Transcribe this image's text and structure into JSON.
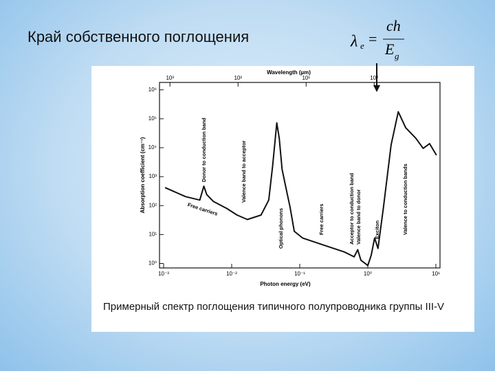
{
  "slide": {
    "title": "Край собственного поглощения",
    "formula": {
      "lhs": "λ",
      "lhs_sub": "e",
      "eq": "=",
      "numerator": "ch",
      "denominator": "E",
      "denominator_sub": "g"
    },
    "caption": "Примерный спектр поглощения типичного полупроводника группы III-V"
  },
  "chart_data": {
    "type": "line",
    "log_x": true,
    "log_y": true,
    "color": "#111111",
    "x_label": "Photon energy (eV)",
    "x2_label": "Wavelength (µm)",
    "y_label": "Absorption coefficient (cm⁻¹)",
    "x": [
      0.00105,
      0.0021,
      0.0034,
      0.0039,
      0.0043,
      0.0054,
      0.0085,
      0.012,
      0.017,
      0.027,
      0.035,
      0.04,
      0.046,
      0.05,
      0.055,
      0.062,
      0.072,
      0.083,
      0.11,
      0.22,
      0.45,
      0.63,
      0.71,
      0.79,
      1.0,
      1.12,
      1.26,
      1.41,
      1.7,
      2.2,
      2.8,
      3.6,
      5.1,
      6.5,
      8.1,
      10.2
    ],
    "values": [
      417,
      204,
      155,
      468,
      240,
      138,
      79,
      47,
      33,
      47,
      155,
      2400,
      72000,
      21000,
      1800,
      470,
      89,
      13,
      7.6,
      4.4,
      2.5,
      1.7,
      3.0,
      1.3,
      0.85,
      1.9,
      7.6,
      3.3,
      89,
      12600,
      174000,
      49000,
      21000,
      9500,
      13800,
      5500
    ],
    "xlim": [
      0.00087,
      11.5
    ],
    "xticks": [
      {
        "value": 0.001,
        "label": "10⁻³"
      },
      {
        "value": 0.01,
        "label": "10⁻²"
      },
      {
        "value": 0.1,
        "label": "10⁻¹"
      },
      {
        "value": 1,
        "label": "10⁰"
      },
      {
        "value": 10,
        "label": "10¹"
      }
    ],
    "x2lim": [
      1425,
      0.108
    ],
    "x2ticks": [
      {
        "value": 1000,
        "label": "10³"
      },
      {
        "value": 100,
        "label": "10²"
      },
      {
        "value": 10,
        "label": "10¹"
      },
      {
        "value": 1,
        "label": "10⁰"
      }
    ],
    "ylim": [
      0.7,
      1800000
    ],
    "yticks": [
      {
        "value": 1,
        "label": "10⁰"
      },
      {
        "value": 10,
        "label": "10¹"
      },
      {
        "value": 100,
        "label": "10²"
      },
      {
        "value": 1000,
        "label": "10³"
      },
      {
        "value": 10000,
        "label": "10⁴"
      },
      {
        "value": 100000,
        "label": "10⁵"
      },
      {
        "value": 1000000,
        "label": "10⁶"
      }
    ],
    "annotations": [
      "Donor to conduction band",
      "Valence band to acceptor",
      "Free carriers",
      "Optical phonons",
      "Free carriers",
      "Acceptor to conduction band",
      "Valence band to donor",
      "Exciton",
      "Valence to conduction bands"
    ]
  }
}
